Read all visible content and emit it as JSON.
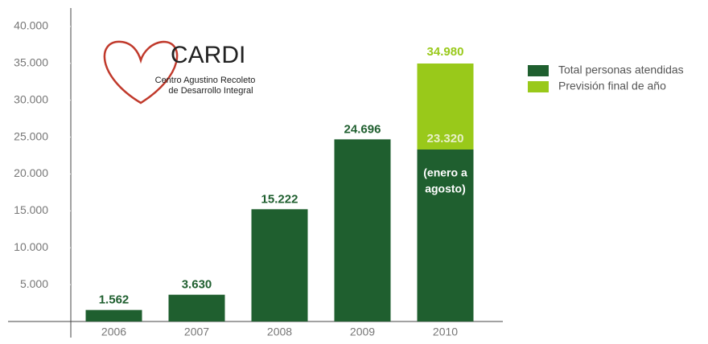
{
  "chart_data": {
    "type": "stacked_bar",
    "logo": {
      "title": "CARDI",
      "subtitle": [
        "Centro Agustino Recoleto",
        "de Desarrollo Integral"
      ]
    },
    "categories": [
      "2006",
      "2007",
      "2008",
      "2009",
      "2010"
    ],
    "series": [
      {
        "name": "Total personas atendidas",
        "color": "#1f5f2f",
        "values": [
          1562,
          3630,
          15222,
          24696,
          23320
        ],
        "value_labels": [
          "1.562",
          "3.630",
          "15.222",
          "24.696",
          "23.320"
        ]
      },
      {
        "name": "Previsión final de año",
        "color": "#99c91a",
        "values": [
          null,
          null,
          null,
          null,
          11660
        ]
      }
    ],
    "annotations": [
      {
        "text": "34.980"
      },
      {
        "text": [
          "(enero a",
          "agosto)"
        ]
      }
    ],
    "ylim": [
      0,
      42500
    ],
    "yticks": [
      {
        "value": 5000,
        "label": "5.000"
      },
      {
        "value": 10000,
        "label": "10.000"
      },
      {
        "value": 15000,
        "label": "15.000"
      },
      {
        "value": 20000,
        "label": "20.000"
      },
      {
        "value": 25000,
        "label": "25.000"
      },
      {
        "value": 30000,
        "label": "30.000"
      },
      {
        "value": 35000,
        "label": "35.000"
      },
      {
        "value": 40000,
        "label": "40.000"
      }
    ],
    "legend": "right"
  }
}
